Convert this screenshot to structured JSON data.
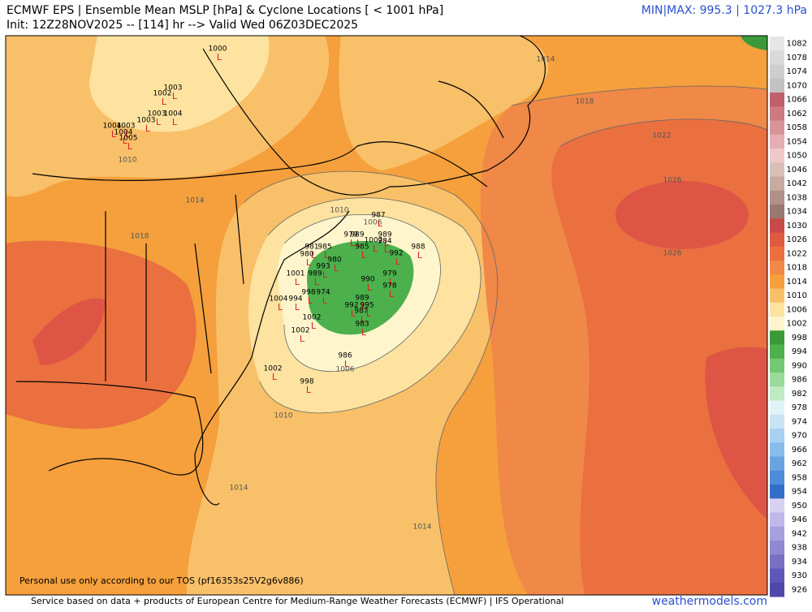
{
  "header": {
    "title": "ECMWF EPS | Ensemble Mean MSLP [hPa] & Cyclone Locations [ < 1001 hPa]",
    "init": "Init: 12Z28NOV2025 -- [114] hr --> Valid Wed 06Z03DEC2025",
    "minmax": "MIN|MAX: 995.3 | 1027.3 hPa"
  },
  "colorbar": {
    "levels": [
      "1082",
      "1078",
      "1074",
      "1070",
      "1066",
      "1062",
      "1058",
      "1054",
      "1050",
      "1046",
      "1042",
      "1038",
      "1034",
      "1030",
      "1026",
      "1022",
      "1018",
      "1014",
      "1010",
      "1006",
      "1002",
      "998",
      "994",
      "990",
      "986",
      "982",
      "978",
      "974",
      "970",
      "966",
      "962",
      "958",
      "954",
      "950",
      "946",
      "942",
      "938",
      "934",
      "930",
      "926"
    ],
    "colors": [
      "#e6e6e6",
      "#dadada",
      "#cecece",
      "#c2c2c2",
      "#c0606a",
      "#cc7a80",
      "#d8949a",
      "#e4aeb2",
      "#f0c8ca",
      "#d8c0b8",
      "#c8aaa0",
      "#b09088",
      "#987870",
      "#c84a48",
      "#e05a40",
      "#ea7040",
      "#f08848",
      "#f5a03c",
      "#f9c06a",
      "#fde2a0",
      "#fff5cc",
      "#3a9a3a",
      "#4cb04c",
      "#74c874",
      "#9ada9a",
      "#c0eac0",
      "#e0f4f8",
      "#c8e4f4",
      "#a8d0f0",
      "#88bcea",
      "#6aa4e0",
      "#4c8cd8",
      "#3070c8",
      "#d8d0f0",
      "#c0b8e8",
      "#a8a0dc",
      "#9088d0",
      "#7870c4",
      "#6058b8",
      "#5048a8"
    ]
  },
  "contour_labels": [
    "1014",
    "1018",
    "1022",
    "1026",
    "1026",
    "1018",
    "1014",
    "1010",
    "1010",
    "1006",
    "1006",
    "1010",
    "1014",
    "1014"
  ],
  "cyclone_marker": "L",
  "cyclones": [
    "1000",
    "1003",
    "1002",
    "1003",
    "1004",
    "1003",
    "1004",
    "1003",
    "1004",
    "1005",
    "987",
    "979",
    "989",
    "1002",
    "989",
    "984",
    "988",
    "981",
    "985",
    "985",
    "980",
    "980",
    "993",
    "992",
    "989",
    "1001",
    "979",
    "990",
    "978",
    "998",
    "974",
    "989",
    "994",
    "1004",
    "992",
    "995",
    "987",
    "1002",
    "983",
    "1002",
    "986",
    "1002",
    "998"
  ],
  "footer": {
    "tos": "Personal use only according to our TOS (pf16353s25V2g6v886)",
    "source": "Service based on data + products of European Centre for Medium-Range Weather Forecasts (ECMWF) | IFS Operational",
    "site": "weathermodels.com"
  }
}
